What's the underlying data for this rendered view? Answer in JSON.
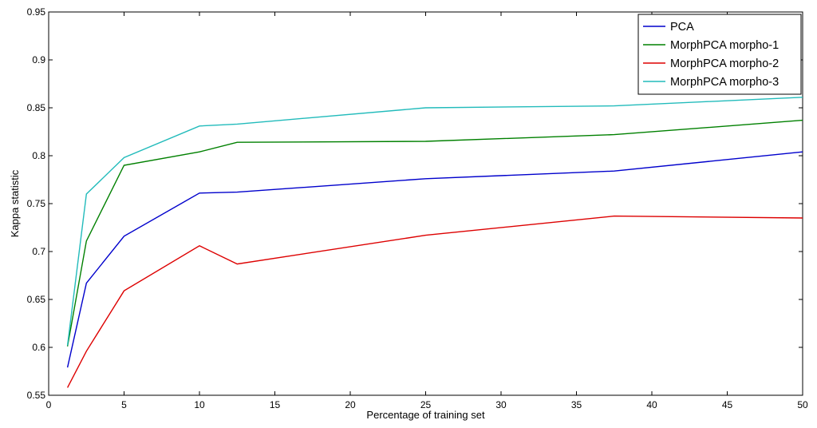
{
  "chart_data": {
    "type": "line",
    "title": "",
    "xlabel": "Percentage of training set",
    "ylabel": "Kappa statistic",
    "xlim": [
      0,
      50
    ],
    "ylim": [
      0.55,
      0.95
    ],
    "x_ticks": [
      0,
      5,
      10,
      15,
      20,
      25,
      30,
      35,
      40,
      45,
      50
    ],
    "y_ticks": [
      0.55,
      0.6,
      0.65,
      0.7,
      0.75,
      0.8,
      0.85,
      0.9,
      0.95
    ],
    "x_tick_labels": [
      "0",
      "5",
      "10",
      "15",
      "20",
      "25",
      "30",
      "35",
      "40",
      "45",
      "50"
    ],
    "y_tick_labels": [
      "0.55",
      "0.6",
      "0.65",
      "0.7",
      "0.75",
      "0.8",
      "0.85",
      "0.9",
      "0.95"
    ],
    "grid": false,
    "legend_position": "top-right",
    "x": [
      1.25,
      2.5,
      5,
      10,
      12.5,
      25,
      37.5,
      50
    ],
    "series": [
      {
        "name": "PCA",
        "color": "#0000cc",
        "values": [
          0.579,
          0.667,
          0.716,
          0.761,
          0.762,
          0.776,
          0.784,
          0.804
        ]
      },
      {
        "name": "MorphPCA morpho-1",
        "color": "#008000",
        "values": [
          0.601,
          0.711,
          0.79,
          0.804,
          0.814,
          0.815,
          0.822,
          0.837
        ]
      },
      {
        "name": "MorphPCA morpho-2",
        "color": "#dd0000",
        "values": [
          0.558,
          0.596,
          0.659,
          0.706,
          0.687,
          0.717,
          0.737,
          0.735
        ]
      },
      {
        "name": "MorphPCA morpho-3",
        "color": "#22bbbb",
        "values": [
          0.602,
          0.76,
          0.798,
          0.831,
          0.833,
          0.85,
          0.852,
          0.861
        ]
      }
    ]
  }
}
